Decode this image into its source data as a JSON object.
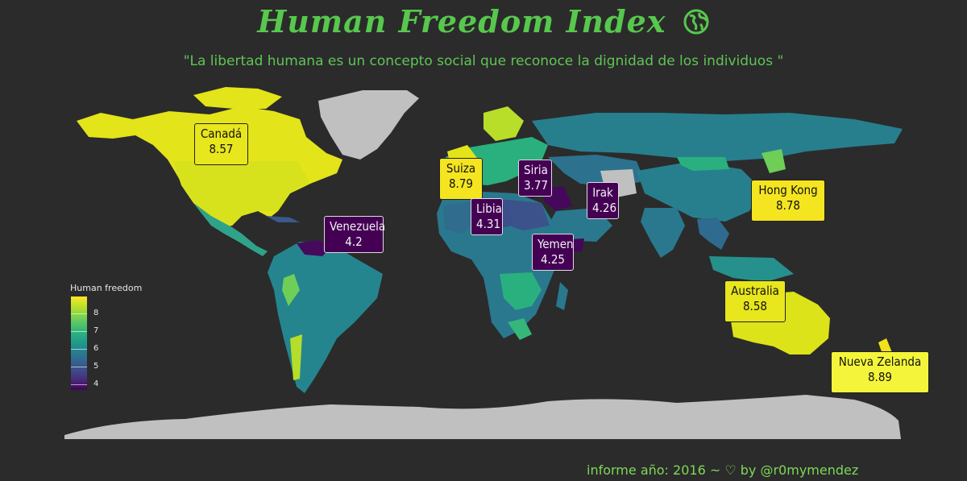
{
  "title": "Human Freedom Index",
  "title_icon": "globe-icon",
  "subtitle": "\"La libertad humana es un concepto social que reconoce la dignidad de los individuos \"",
  "caption": "informe año: 2016 ~ ♡ by @r0mymendez",
  "legend": {
    "title": "Human freedom",
    "ticks": [
      "8",
      "7",
      "6",
      "5",
      "4"
    ]
  },
  "colors": {
    "background": "#2b2b2b",
    "title": "#57c84d",
    "no_data": "#c0c0c0",
    "high": "#fde725",
    "low": "#440154"
  },
  "labels": [
    {
      "name": "Canadá",
      "value": "8.57"
    },
    {
      "name": "Suiza",
      "value": "8.79"
    },
    {
      "name": "Siria",
      "value": "3.77"
    },
    {
      "name": "Irak",
      "value": "4.26"
    },
    {
      "name": "Hong Kong",
      "value": "8.78"
    },
    {
      "name": "Libia",
      "value": "4.31"
    },
    {
      "name": "Venezuela",
      "value": "4.2"
    },
    {
      "name": "Yemen",
      "value": "4.25"
    },
    {
      "name": "Australia",
      "value": "8.58"
    },
    {
      "name": "Nueva Zelanda",
      "value": "8.89"
    }
  ]
}
